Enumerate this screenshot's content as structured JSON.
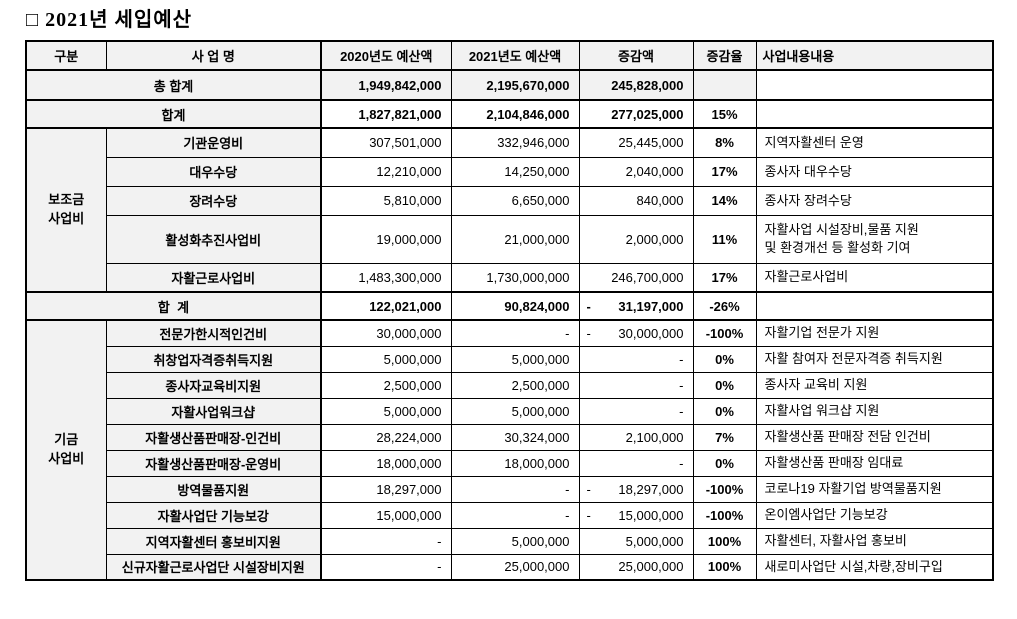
{
  "title": "□ 2021년 세입예산",
  "table": {
    "headers": {
      "category": "구분",
      "name": "사 업 명",
      "budget2020": "2020년도 예산액",
      "budget2021": "2021년도 예산액",
      "change": "증감액",
      "rate": "증감율",
      "detail": "사업내용내용"
    },
    "rows": [
      {
        "kind": "grand",
        "label": "총 합계",
        "b2020": "1,949,842,000",
        "b2021": "2,195,670,000",
        "change": "245,828,000",
        "rate": "",
        "detail": ""
      },
      {
        "kind": "total",
        "label": "합계",
        "b2020": "1,827,821,000",
        "b2021": "2,104,846,000",
        "change": "277,025,000",
        "rate": "15%",
        "detail": ""
      },
      {
        "kind": "item",
        "group": {
          "label": "보조금\n사업비",
          "span": 5
        },
        "name": "기관운영비",
        "b2020": "307,501,000",
        "b2021": "332,946,000",
        "change": "25,445,000",
        "rate": "8%",
        "detail": "지역자활센터 운영"
      },
      {
        "kind": "item",
        "name": "대우수당",
        "b2020": "12,210,000",
        "b2021": "14,250,000",
        "change": "2,040,000",
        "rate": "17%",
        "detail": "종사자 대우수당"
      },
      {
        "kind": "item",
        "name": "장려수당",
        "b2020": "5,810,000",
        "b2021": "6,650,000",
        "change": "840,000",
        "rate": "14%",
        "detail": "종사자 장려수당"
      },
      {
        "kind": "item",
        "name": "활성화추진사업비",
        "b2020": "19,000,000",
        "b2021": "21,000,000",
        "change": "2,000,000",
        "rate": "11%",
        "detail": "자활사업 시설장비,물품 지원",
        "detail2": "및 환경개선 등 활성화 기여"
      },
      {
        "kind": "item",
        "name": "자활근로사업비",
        "b2020": "1,483,300,000",
        "b2021": "1,730,000,000",
        "change": "246,700,000",
        "rate": "17%",
        "detail": "자활근로사업비"
      },
      {
        "kind": "total",
        "label": "합  계",
        "b2020": "122,021,000",
        "b2021": "90,824,000",
        "change_sign": "-",
        "change": "31,197,000",
        "rate": "-26%",
        "detail": ""
      },
      {
        "kind": "item",
        "group": {
          "label": "기금\n사업비",
          "span": 10
        },
        "name": "전문가한시적인건비",
        "b2020": "30,000,000",
        "b2021": "-",
        "change_sign": "-",
        "change": "30,000,000",
        "rate": "-100%",
        "detail": "자활기업 전문가 지원"
      },
      {
        "kind": "item",
        "name": "취창업자격증취득지원",
        "b2020": "5,000,000",
        "b2021": "5,000,000",
        "change": "-",
        "rate": "0%",
        "detail": "자활 참여자 전문자격증 취득지원"
      },
      {
        "kind": "item",
        "name": "종사자교육비지원",
        "b2020": "2,500,000",
        "b2021": "2,500,000",
        "change": "-",
        "rate": "0%",
        "detail": "종사자 교육비 지원"
      },
      {
        "kind": "item",
        "name": "자활사업워크샵",
        "b2020": "5,000,000",
        "b2021": "5,000,000",
        "change": "-",
        "rate": "0%",
        "detail": "자활사업 워크샵 지원"
      },
      {
        "kind": "item",
        "name": "자활생산품판매장-인건비",
        "b2020": "28,224,000",
        "b2021": "30,324,000",
        "change": "2,100,000",
        "rate": "7%",
        "detail": "자활생산품 판매장 전담 인건비"
      },
      {
        "kind": "item",
        "name": "자활생산품판매장-운영비",
        "b2020": "18,000,000",
        "b2021": "18,000,000",
        "change": "-",
        "rate": "0%",
        "detail": "자활생산품 판매장 임대료"
      },
      {
        "kind": "item",
        "name": "방역물품지원",
        "b2020": "18,297,000",
        "b2021": "-",
        "change_sign": "-",
        "change": "18,297,000",
        "rate": "-100%",
        "detail": "코로나19 자활기업 방역물품지원"
      },
      {
        "kind": "item",
        "name": "자활사업단 기능보강",
        "b2020": "15,000,000",
        "b2021": "-",
        "change_sign": "-",
        "change": "15,000,000",
        "rate": "-100%",
        "detail": "온이엠사업단 기능보강"
      },
      {
        "kind": "item",
        "name": "지역자활센터 홍보비지원",
        "b2020": "-",
        "b2021": "5,000,000",
        "change": "5,000,000",
        "rate": "100%",
        "detail": "자활센터, 자활사업 홍보비"
      },
      {
        "kind": "item",
        "name": "신규자활근로사업단 시설장비지원",
        "b2020": "-",
        "b2021": "25,000,000",
        "change": "25,000,000",
        "rate": "100%",
        "detail": "새로미사업단 시설,차량,장비구입"
      }
    ]
  }
}
